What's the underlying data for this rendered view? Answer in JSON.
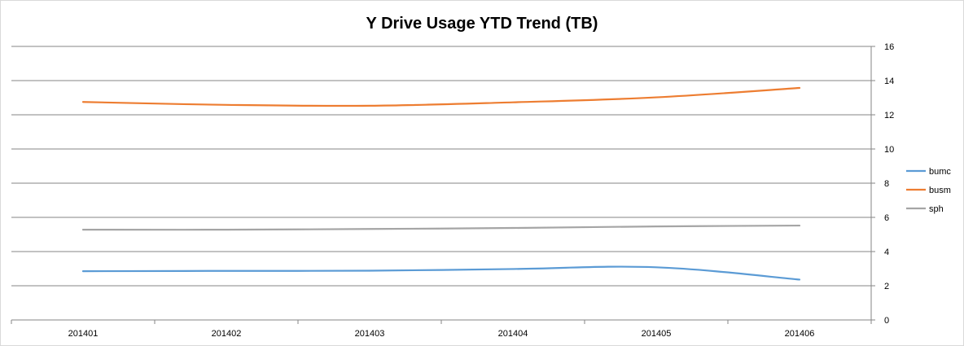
{
  "chart_data": {
    "type": "line",
    "title": "Y Drive Usage YTD Trend (TB)",
    "xlabel": "",
    "ylabel": "",
    "categories": [
      "201401",
      "201402",
      "201403",
      "201404",
      "201405",
      "201406"
    ],
    "series": [
      {
        "name": "bumc",
        "color": "#5B9BD5",
        "values": [
          2.85,
          2.87,
          2.88,
          2.98,
          3.08,
          2.36
        ]
      },
      {
        "name": "busm",
        "color": "#ED7D31",
        "values": [
          12.75,
          12.58,
          12.53,
          12.73,
          13.02,
          13.57
        ]
      },
      {
        "name": "sph",
        "color": "#A5A5A5",
        "values": [
          5.28,
          5.28,
          5.32,
          5.38,
          5.47,
          5.52
        ]
      }
    ],
    "ylim": [
      0,
      16
    ],
    "yticks": [
      "0",
      "2",
      "4",
      "6",
      "8",
      "10",
      "12",
      "14",
      "16"
    ],
    "y_axis_side": "right",
    "grid": true,
    "legend_position": "right"
  }
}
